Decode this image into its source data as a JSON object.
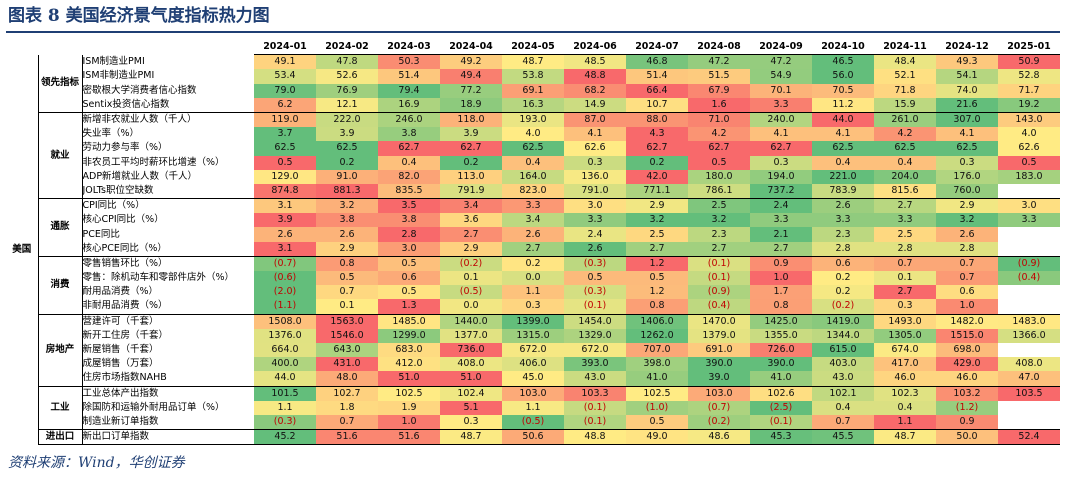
{
  "title": "图表 8   美国经济景气度指标热力图",
  "source": "资料来源：Wind，华创证券",
  "country": "美国",
  "months": [
    "2024-01",
    "2024-02",
    "2024-03",
    "2024-04",
    "2024-05",
    "2024-06",
    "2024-07",
    "2024-08",
    "2024-09",
    "2024-10",
    "2024-11",
    "2024-12",
    "2025-01"
  ],
  "colors": {
    "red": "#f8696b",
    "yellow": "#ffeb84",
    "green": "#63be7b"
  },
  "groups": [
    {
      "name": "领先指标",
      "rows": [
        {
          "name": "ISM制造业PMI",
          "values": [
            "49.1",
            "47.8",
            "50.3",
            "49.2",
            "48.7",
            "48.5",
            "46.8",
            "47.2",
            "47.2",
            "46.5",
            "48.4",
            "49.3",
            "50.9"
          ],
          "dir": 1
        },
        {
          "name": "ISM非制造业PMI",
          "values": [
            "53.4",
            "52.6",
            "51.4",
            "49.4",
            "53.8",
            "48.8",
            "51.4",
            "51.5",
            "54.9",
            "56.0",
            "52.1",
            "54.1",
            "52.8"
          ],
          "dir": -1
        },
        {
          "name": "密歇根大学消费者信心指数",
          "values": [
            "79.0",
            "76.9",
            "79.4",
            "77.2",
            "69.1",
            "68.2",
            "66.4",
            "67.9",
            "70.1",
            "70.5",
            "71.8",
            "74.0",
            "71.7"
          ],
          "dir": -1
        },
        {
          "name": "Sentix投资信心指数",
          "values": [
            "6.2",
            "12.1",
            "16.9",
            "18.9",
            "16.3",
            "14.9",
            "10.7",
            "1.6",
            "3.3",
            "11.2",
            "15.9",
            "21.6",
            "19.2"
          ],
          "dir": -1
        }
      ]
    },
    {
      "name": "就业",
      "rows": [
        {
          "name": "新增非农就业人数（千人）",
          "values": [
            "119.0",
            "222.0",
            "246.0",
            "118.0",
            "193.0",
            "87.0",
            "88.0",
            "71.0",
            "240.0",
            "44.0",
            "261.0",
            "307.0",
            "143.0"
          ],
          "dir": -1
        },
        {
          "name": "失业率（%）",
          "values": [
            "3.7",
            "3.9",
            "3.8",
            "3.9",
            "4.0",
            "4.1",
            "4.3",
            "4.2",
            "4.1",
            "4.1",
            "4.2",
            "4.1",
            "4.0"
          ],
          "dir": 1
        },
        {
          "name": "劳动力参与率（%）",
          "values": [
            "62.5",
            "62.5",
            "62.7",
            "62.7",
            "62.5",
            "62.6",
            "62.7",
            "62.7",
            "62.7",
            "62.5",
            "62.5",
            "62.5",
            "62.6"
          ],
          "dir": 1
        },
        {
          "name": "非农员工平均时薪环比增速（%）",
          "values": [
            "0.5",
            "0.2",
            "0.4",
            "0.2",
            "0.4",
            "0.3",
            "0.2",
            "0.5",
            "0.3",
            "0.4",
            "0.4",
            "0.3",
            "0.5"
          ],
          "dir": 1
        },
        {
          "name": "ADP新增就业人数（千人）",
          "values": [
            "129.0",
            "91.0",
            "82.0",
            "113.0",
            "164.0",
            "136.0",
            "42.0",
            "180.0",
            "194.0",
            "221.0",
            "204.0",
            "176.0",
            "183.0"
          ],
          "dir": -1
        },
        {
          "name": "JOLTs职位空缺数",
          "values": [
            "874.8",
            "881.3",
            "835.5",
            "791.9",
            "823.0",
            "791.0",
            "771.1",
            "786.1",
            "737.2",
            "783.9",
            "815.6",
            "760.0",
            ""
          ],
          "dir": 1
        }
      ]
    },
    {
      "name": "通胀",
      "rows": [
        {
          "name": "CPI同比（%）",
          "values": [
            "3.1",
            "3.2",
            "3.5",
            "3.4",
            "3.3",
            "3.0",
            "2.9",
            "2.5",
            "2.4",
            "2.6",
            "2.7",
            "2.9",
            "3.0"
          ],
          "dir": 1
        },
        {
          "name": "核心CPI同比（%）",
          "values": [
            "3.9",
            "3.8",
            "3.8",
            "3.6",
            "3.4",
            "3.3",
            "3.2",
            "3.2",
            "3.3",
            "3.3",
            "3.3",
            "3.2",
            "3.3"
          ],
          "dir": 1
        },
        {
          "name": "PCE同比",
          "values": [
            "2.6",
            "2.6",
            "2.8",
            "2.7",
            "2.6",
            "2.4",
            "2.5",
            "2.3",
            "2.1",
            "2.3",
            "2.5",
            "2.6",
            ""
          ],
          "dir": 1
        },
        {
          "name": "核心PCE同比（%）",
          "values": [
            "3.1",
            "2.9",
            "3.0",
            "2.9",
            "2.7",
            "2.6",
            "2.7",
            "2.7",
            "2.7",
            "2.8",
            "2.8",
            "2.8",
            ""
          ],
          "dir": 1
        }
      ]
    },
    {
      "name": "消费",
      "rows": [
        {
          "name": "零售销售环比（%）",
          "values": [
            "(0.7)",
            "0.8",
            "0.5",
            "(0.2)",
            "0.2",
            "(0.3)",
            "1.2",
            "(0.1)",
            "0.9",
            "0.6",
            "0.7",
            "0.7",
            "(0.9)"
          ],
          "dir": 1
        },
        {
          "name": "零售：除机动车和零部件店外（%）",
          "values": [
            "(0.6)",
            "0.5",
            "0.6",
            "0.1",
            "0.0",
            "0.5",
            "0.5",
            "(0.1)",
            "1.0",
            "0.2",
            "0.1",
            "0.7",
            "(0.4)"
          ],
          "dir": 1
        },
        {
          "name": "耐用品消费（%）",
          "values": [
            "(2.0)",
            "0.7",
            "0.5",
            "(0.5)",
            "1.1",
            "(0.3)",
            "1.2",
            "(0.9)",
            "1.7",
            "0.2",
            "2.7",
            "0.6",
            ""
          ],
          "dir": 1
        },
        {
          "name": "非耐用品消费（%）",
          "values": [
            "(1.1)",
            "0.1",
            "1.3",
            "0.0",
            "0.3",
            "(0.1)",
            "0.8",
            "(0.4)",
            "0.8",
            "(0.2)",
            "0.3",
            "1.0",
            ""
          ],
          "dir": 1
        }
      ]
    },
    {
      "name": "房地产",
      "rows": [
        {
          "name": "营建许可（千套）",
          "values": [
            "1508.0",
            "1563.0",
            "1485.0",
            "1440.0",
            "1399.0",
            "1454.0",
            "1406.0",
            "1470.0",
            "1425.0",
            "1419.0",
            "1493.0",
            "1482.0",
            "1483.0"
          ],
          "dir": 1
        },
        {
          "name": "新开工住房（千套）",
          "values": [
            "1376.0",
            "1546.0",
            "1299.0",
            "1377.0",
            "1315.0",
            "1329.0",
            "1262.0",
            "1379.0",
            "1355.0",
            "1344.0",
            "1305.0",
            "1515.0",
            "1366.0"
          ],
          "dir": 1
        },
        {
          "name": "新屋销售（千套）",
          "values": [
            "664.0",
            "643.0",
            "683.0",
            "736.0",
            "672.0",
            "672.0",
            "707.0",
            "691.0",
            "726.0",
            "615.0",
            "674.0",
            "698.0",
            ""
          ],
          "dir": 1
        },
        {
          "name": "成屋销售（万套）",
          "values": [
            "400.0",
            "431.0",
            "412.0",
            "408.0",
            "406.0",
            "393.0",
            "398.0",
            "390.0",
            "390.0",
            "403.0",
            "417.0",
            "429.0",
            "408.0"
          ],
          "dir": 1
        },
        {
          "name": "住房市场指数NAHB",
          "values": [
            "44.0",
            "48.0",
            "51.0",
            "51.0",
            "45.0",
            "43.0",
            "41.0",
            "39.0",
            "41.0",
            "43.0",
            "46.0",
            "46.0",
            "47.0"
          ],
          "dir": 1
        }
      ]
    },
    {
      "name": "工业",
      "rows": [
        {
          "name": "工业总体产出指数",
          "values": [
            "101.5",
            "102.7",
            "102.5",
            "102.4",
            "103.0",
            "103.3",
            "102.5",
            "103.0",
            "102.6",
            "102.1",
            "102.3",
            "103.2",
            "103.5"
          ],
          "dir": 1
        },
        {
          "name": "除国防和运输外耐用品订单（%）",
          "values": [
            "1.1",
            "1.8",
            "1.9",
            "5.1",
            "1.1",
            "(0.1)",
            "(1.0)",
            "(0.7)",
            "(2.5)",
            "0.4",
            "0.4",
            "(1.2)",
            ""
          ],
          "dir": 1
        },
        {
          "name": "制造业新订单指数",
          "values": [
            "(0.3)",
            "0.7",
            "1.0",
            "0.3",
            "(0.5)",
            "(0.1)",
            "0.5",
            "(0.2)",
            "(0.1)",
            "0.7",
            "1.1",
            "0.9",
            ""
          ],
          "dir": 1
        }
      ]
    },
    {
      "name": "进出口",
      "rows": [
        {
          "name": "新出口订单指数",
          "values": [
            "45.2",
            "51.6",
            "51.6",
            "48.7",
            "50.6",
            "48.8",
            "49.0",
            "48.6",
            "45.3",
            "45.5",
            "48.7",
            "50.0",
            "52.4"
          ],
          "dir": 1
        }
      ]
    }
  ]
}
